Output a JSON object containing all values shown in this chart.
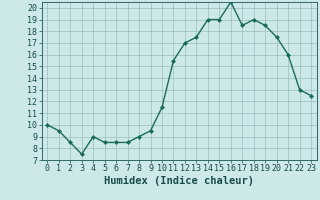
{
  "x": [
    0,
    1,
    2,
    3,
    4,
    5,
    6,
    7,
    8,
    9,
    10,
    11,
    12,
    13,
    14,
    15,
    16,
    17,
    18,
    19,
    20,
    21,
    22,
    23
  ],
  "y": [
    10,
    9.5,
    8.5,
    7.5,
    9,
    8.5,
    8.5,
    8.5,
    9,
    9.5,
    11.5,
    15.5,
    17,
    17.5,
    19,
    19,
    20.5,
    18.5,
    19,
    18.5,
    17.5,
    16,
    13,
    12.5
  ],
  "line_color": "#1a6b5a",
  "marker": "D",
  "marker_size": 2.0,
  "bg_color": "#cce8e8",
  "grid_color": "#9abebe",
  "xlabel": "Humidex (Indice chaleur)",
  "xlabel_fontsize": 7.5,
  "ylim": [
    7,
    20.5
  ],
  "xlim": [
    -0.5,
    23.5
  ],
  "yticks": [
    7,
    8,
    9,
    10,
    11,
    12,
    13,
    14,
    15,
    16,
    17,
    18,
    19,
    20
  ],
  "xticks": [
    0,
    1,
    2,
    3,
    4,
    5,
    6,
    7,
    8,
    9,
    10,
    11,
    12,
    13,
    14,
    15,
    16,
    17,
    18,
    19,
    20,
    21,
    22,
    23
  ],
  "tick_label_fontsize": 6.0,
  "line_width": 1.0
}
